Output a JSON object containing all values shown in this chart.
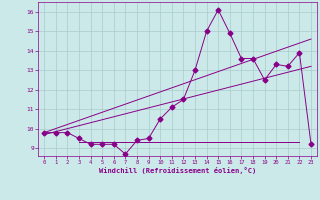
{
  "xlabel": "Windchill (Refroidissement éolien,°C)",
  "xlim": [
    -0.5,
    23.5
  ],
  "ylim": [
    8.6,
    16.5
  ],
  "yticks": [
    9,
    10,
    11,
    12,
    13,
    14,
    15,
    16
  ],
  "xticks": [
    0,
    1,
    2,
    3,
    4,
    5,
    6,
    7,
    8,
    9,
    10,
    11,
    12,
    13,
    14,
    15,
    16,
    17,
    18,
    19,
    20,
    21,
    22,
    23
  ],
  "bg_color": "#cce9e9",
  "grid_color": "#aacccc",
  "line_color": "#880088",
  "line1_x": [
    0,
    1,
    2,
    3,
    4,
    5,
    6,
    7,
    8,
    9,
    10,
    11,
    12,
    13,
    14,
    15,
    16,
    17,
    18,
    19,
    20,
    21,
    22,
    23
  ],
  "line1_y": [
    9.8,
    9.8,
    9.8,
    9.5,
    9.2,
    9.2,
    9.2,
    8.7,
    9.4,
    9.5,
    10.5,
    11.1,
    11.5,
    13.0,
    15.0,
    16.1,
    14.9,
    13.6,
    13.6,
    12.5,
    13.3,
    13.2,
    13.9,
    9.2
  ],
  "line2_x": [
    0,
    23
  ],
  "line2_y": [
    9.8,
    14.6
  ],
  "line3_x": [
    0,
    23
  ],
  "line3_y": [
    9.7,
    13.2
  ],
  "line4_x": [
    3,
    22
  ],
  "line4_y": [
    9.3,
    9.3
  ],
  "markersize": 2.5
}
